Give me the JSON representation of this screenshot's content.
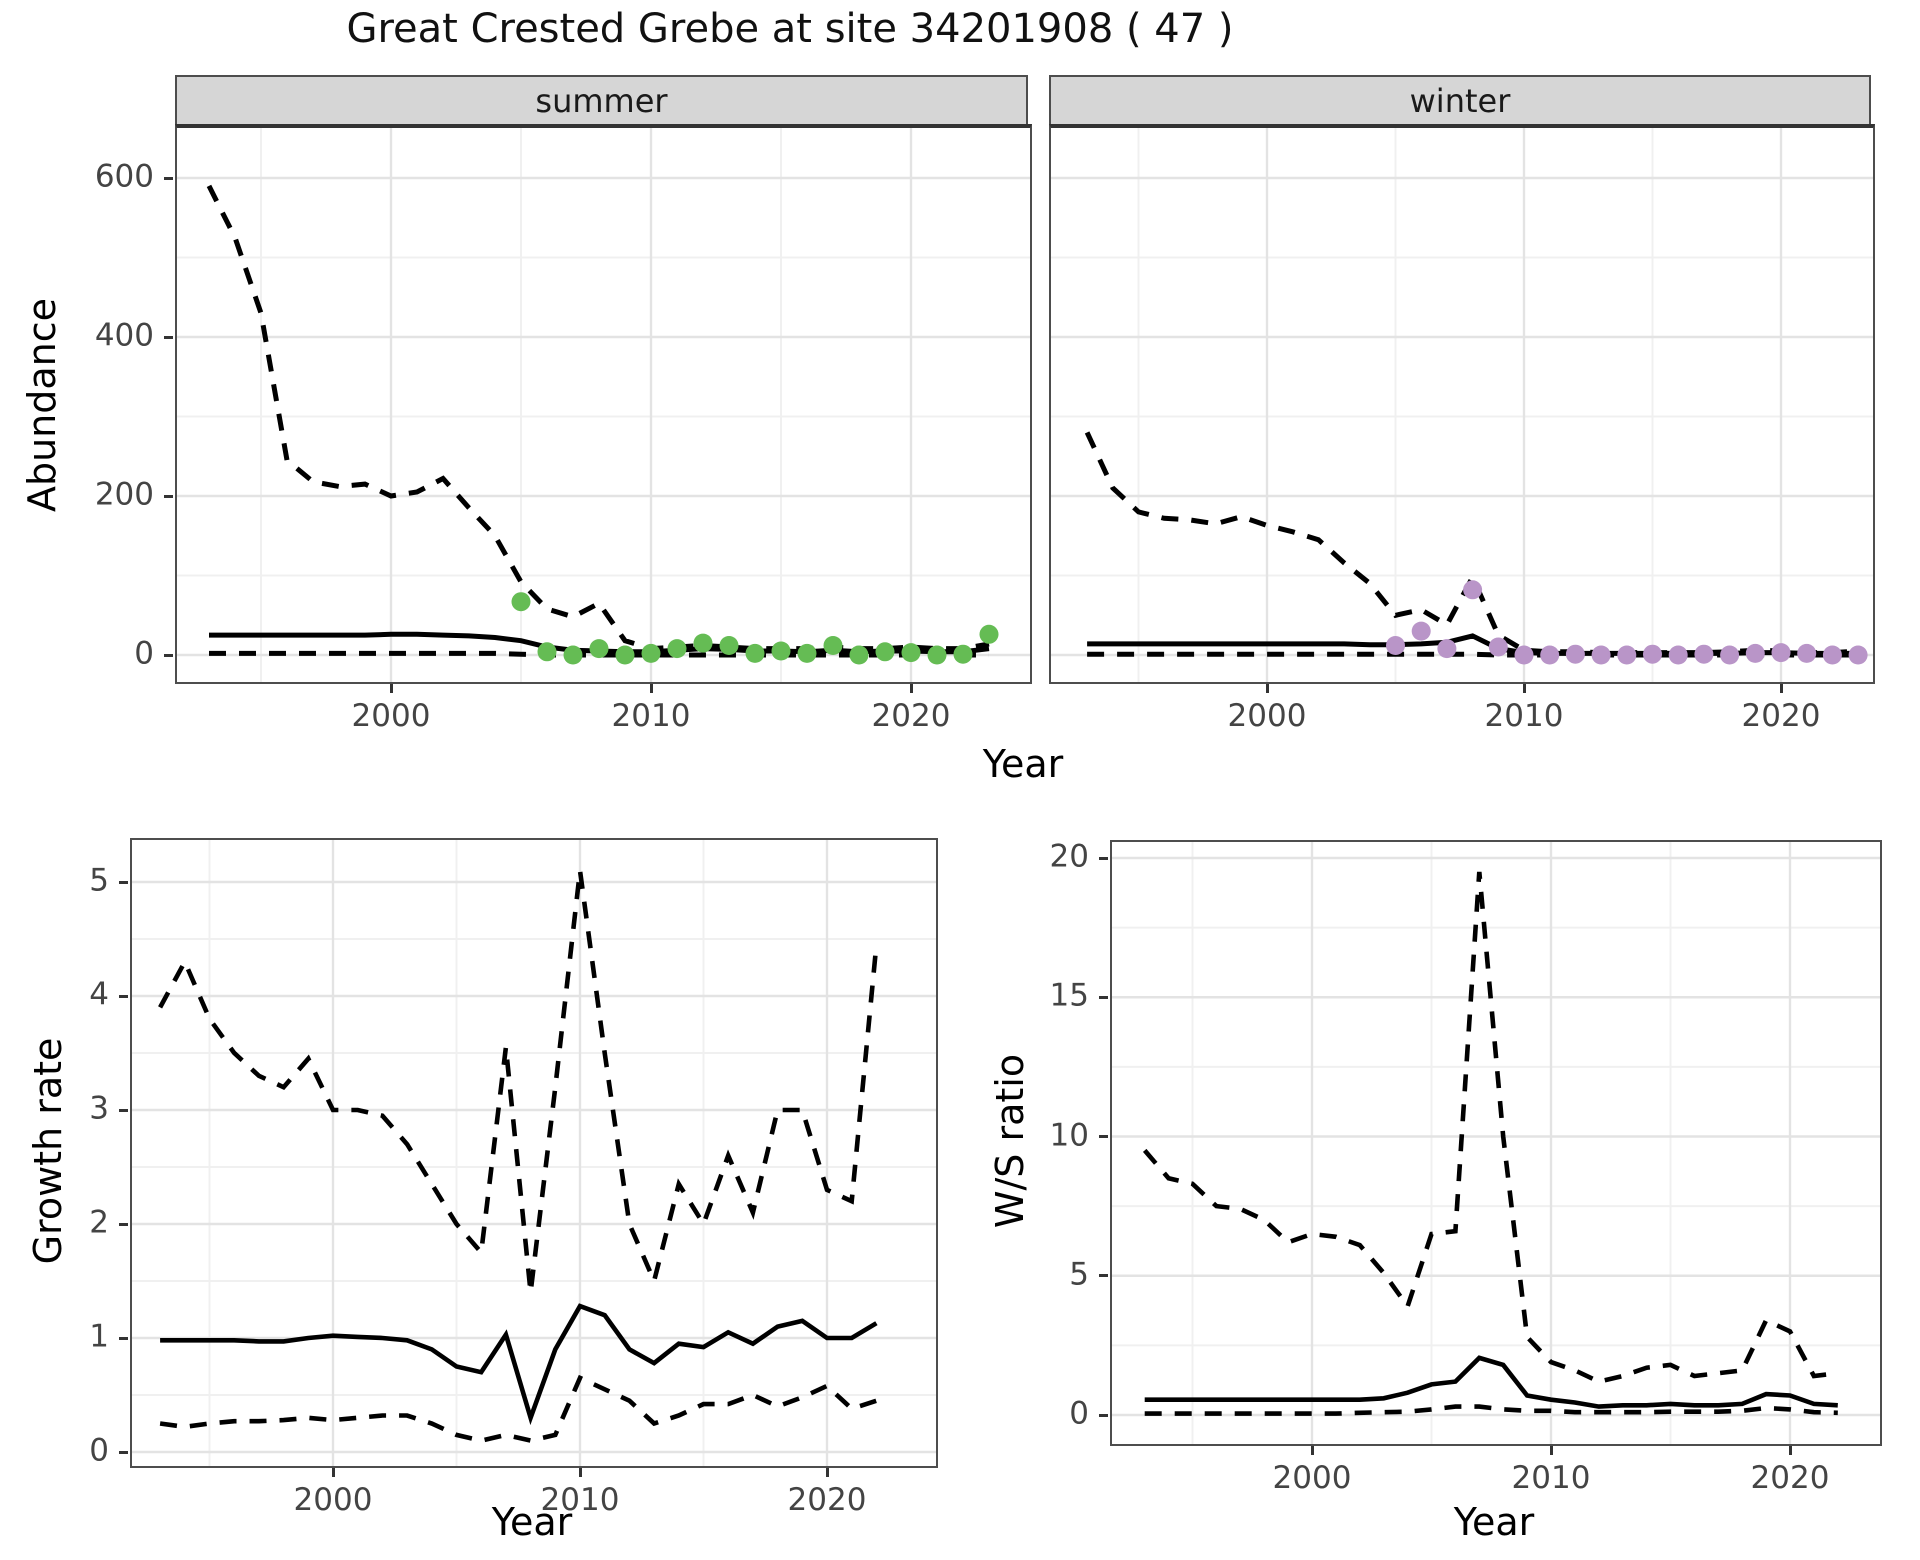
{
  "title": "Great Crested Grebe at site 34201908 ( 47 )",
  "colors": {
    "summer_point": "#65bc54",
    "winter_point": "#b995c8",
    "line": "#000000",
    "strip_bg": "#d6d6d6",
    "grid_major": "#e3e3e3",
    "grid_minor": "#f0f0f0",
    "panel_border": "#4d4d4d",
    "tick_text": "#444444"
  },
  "chart_data": [
    {
      "id": "abundance",
      "type": "line",
      "ylabel": "Abundance",
      "xlabel": "Year",
      "yticks": [
        0,
        200,
        400,
        600
      ],
      "xticks": [
        2000,
        2010,
        2020
      ],
      "ylim": [
        -30,
        663
      ],
      "xlim": [
        1992,
        2024.6
      ],
      "years": [
        1993,
        1994,
        1995,
        1996,
        1997,
        1998,
        1999,
        2000,
        2001,
        2002,
        2003,
        2004,
        2005,
        2006,
        2007,
        2008,
        2009,
        2010,
        2011,
        2012,
        2013,
        2014,
        2015,
        2016,
        2017,
        2018,
        2019,
        2020,
        2021,
        2022,
        2023
      ],
      "facets": [
        {
          "label": "summer",
          "series": [
            {
              "name": "upper_ci",
              "style": "dashed",
              "values": [
                590,
                525,
                430,
                245,
                218,
                212,
                215,
                200,
                205,
                222,
                185,
                150,
                92,
                58,
                48,
                65,
                18,
                8,
                10,
                12,
                10,
                8,
                8,
                8,
                10,
                8,
                8,
                10,
                8,
                8,
                14
              ]
            },
            {
              "name": "mean",
              "style": "solid",
              "values": [
                25,
                25,
                25,
                25,
                25,
                25,
                25,
                26,
                26,
                25,
                24,
                22,
                18,
                10,
                6,
                5,
                4,
                4,
                6,
                8,
                7,
                5,
                5,
                4,
                6,
                4,
                5,
                5,
                4,
                4,
                8
              ]
            },
            {
              "name": "lower_ci",
              "style": "dashed",
              "values": [
                2,
                2,
                2,
                2,
                2,
                2,
                2,
                2,
                2,
                2,
                2,
                2,
                1,
                0,
                0,
                0,
                0,
                0,
                0,
                0,
                0,
                0,
                0,
                0,
                0,
                0,
                0,
                0,
                0,
                0,
                0
              ]
            }
          ],
          "points": {
            "name": "observed-counts",
            "color_key": "summer_point",
            "years": [
              2005,
              2006,
              2007,
              2008,
              2009,
              2010,
              2011,
              2012,
              2013,
              2014,
              2015,
              2016,
              2017,
              2018,
              2019,
              2020,
              2021,
              2022,
              2023
            ],
            "values": [
              67,
              4,
              0,
              8,
              0,
              2,
              8,
              15,
              12,
              2,
              5,
              2,
              12,
              0,
              4,
              3,
              0,
              1,
              26
            ]
          }
        },
        {
          "label": "winter",
          "series": [
            {
              "name": "upper_ci",
              "style": "dashed",
              "values": [
                280,
                210,
                180,
                172,
                170,
                165,
                174,
                163,
                155,
                145,
                116,
                90,
                50,
                57,
                38,
                98,
                25,
                6,
                4,
                4,
                3,
                3,
                3,
                3,
                3,
                4,
                6,
                5,
                3,
                3,
                5
              ]
            },
            {
              "name": "mean",
              "style": "solid",
              "values": [
                14,
                14,
                14,
                14,
                14,
                14,
                14,
                14,
                14,
                14,
                14,
                13,
                13,
                14,
                16,
                24,
                8,
                3,
                2,
                2,
                2,
                2,
                2,
                2,
                2,
                2,
                3,
                3,
                2,
                2,
                2
              ]
            },
            {
              "name": "lower_ci",
              "style": "dashed",
              "values": [
                1,
                1,
                1,
                1,
                1,
                1,
                1,
                1,
                1,
                1,
                1,
                1,
                1,
                1,
                1,
                1,
                0,
                0,
                0,
                0,
                0,
                0,
                0,
                0,
                0,
                0,
                0,
                0,
                0,
                0,
                0
              ]
            }
          ],
          "points": {
            "name": "observed-counts",
            "color_key": "winter_point",
            "years": [
              2005,
              2006,
              2007,
              2008,
              2009,
              2010,
              2011,
              2012,
              2013,
              2014,
              2015,
              2016,
              2017,
              2018,
              2019,
              2020,
              2021,
              2022,
              2023
            ],
            "values": [
              12,
              30,
              8,
              82,
              10,
              0,
              0,
              1,
              0,
              0,
              1,
              0,
              1,
              0,
              2,
              3,
              2,
              0,
              0
            ]
          }
        }
      ]
    },
    {
      "id": "growth_rate",
      "type": "line",
      "ylabel": "Growth rate",
      "xlabel": "Year",
      "yticks": [
        0,
        1,
        2,
        3,
        4,
        5
      ],
      "xticks": [
        2000,
        2010,
        2020
      ],
      "ylim": [
        -0.12,
        5.37
      ],
      "xlim": [
        1991.9,
        2024.4
      ],
      "years": [
        1993,
        1994,
        1995,
        1996,
        1997,
        1998,
        1999,
        2000,
        2001,
        2002,
        2003,
        2004,
        2005,
        2006,
        2007,
        2008,
        2009,
        2010,
        2011,
        2012,
        2013,
        2014,
        2015,
        2016,
        2017,
        2018,
        2019,
        2020,
        2021,
        2022
      ],
      "series": [
        {
          "name": "upper_ci",
          "style": "dashed",
          "values": [
            3.9,
            4.3,
            3.8,
            3.5,
            3.3,
            3.2,
            3.45,
            3.0,
            3.0,
            2.95,
            2.7,
            2.35,
            2.0,
            1.75,
            3.55,
            1.4,
            3.2,
            5.1,
            3.5,
            2.0,
            1.5,
            2.35,
            2.0,
            2.6,
            2.1,
            3.0,
            3.0,
            2.3,
            2.2,
            4.45
          ]
        },
        {
          "name": "mean",
          "style": "solid",
          "values": [
            0.98,
            0.98,
            0.98,
            0.98,
            0.97,
            0.97,
            1.0,
            1.02,
            1.01,
            1.0,
            0.98,
            0.9,
            0.75,
            0.7,
            1.03,
            0.3,
            0.9,
            1.28,
            1.2,
            0.9,
            0.78,
            0.95,
            0.92,
            1.05,
            0.95,
            1.1,
            1.15,
            1.0,
            1.0,
            1.13
          ]
        },
        {
          "name": "lower_ci",
          "style": "dashed",
          "values": [
            0.25,
            0.22,
            0.25,
            0.27,
            0.27,
            0.28,
            0.3,
            0.28,
            0.3,
            0.32,
            0.32,
            0.25,
            0.15,
            0.1,
            0.15,
            0.1,
            0.15,
            0.65,
            0.55,
            0.45,
            0.25,
            0.32,
            0.42,
            0.42,
            0.5,
            0.4,
            0.48,
            0.58,
            0.38,
            0.45
          ]
        }
      ]
    },
    {
      "id": "ws_ratio",
      "type": "line",
      "ylabel": "W/S ratio",
      "xlabel": "Year",
      "yticks": [
        0,
        5,
        10,
        15,
        20
      ],
      "xticks": [
        2000,
        2010,
        2020
      ],
      "ylim": [
        -1.05,
        20.6
      ],
      "xlim": [
        1991.6,
        2023.7
      ],
      "years": [
        1993,
        1994,
        1995,
        1996,
        1997,
        1998,
        1999,
        2000,
        2001,
        2002,
        2003,
        2004,
        2005,
        2006,
        2007,
        2008,
        2009,
        2010,
        2011,
        2012,
        2013,
        2014,
        2015,
        2016,
        2017,
        2018,
        2019,
        2020,
        2021,
        2022
      ],
      "series": [
        {
          "name": "upper_ci",
          "style": "dashed",
          "values": [
            9.5,
            8.5,
            8.3,
            7.5,
            7.4,
            7.0,
            6.2,
            6.5,
            6.4,
            6.1,
            5.1,
            3.9,
            6.5,
            6.6,
            19.5,
            10.0,
            2.8,
            1.9,
            1.6,
            1.2,
            1.4,
            1.7,
            1.8,
            1.4,
            1.5,
            1.6,
            3.4,
            3.0,
            1.4,
            1.5
          ]
        },
        {
          "name": "mean",
          "style": "solid",
          "values": [
            0.55,
            0.55,
            0.55,
            0.55,
            0.55,
            0.55,
            0.55,
            0.55,
            0.55,
            0.55,
            0.6,
            0.8,
            1.1,
            1.2,
            2.05,
            1.8,
            0.7,
            0.55,
            0.45,
            0.3,
            0.35,
            0.35,
            0.4,
            0.35,
            0.35,
            0.4,
            0.75,
            0.7,
            0.4,
            0.35
          ]
        },
        {
          "name": "lower_ci",
          "style": "dashed",
          "values": [
            0.05,
            0.05,
            0.05,
            0.05,
            0.05,
            0.05,
            0.05,
            0.05,
            0.05,
            0.08,
            0.1,
            0.12,
            0.2,
            0.3,
            0.3,
            0.2,
            0.15,
            0.15,
            0.1,
            0.1,
            0.1,
            0.1,
            0.12,
            0.12,
            0.12,
            0.15,
            0.25,
            0.2,
            0.1,
            0.08
          ]
        }
      ]
    }
  ]
}
